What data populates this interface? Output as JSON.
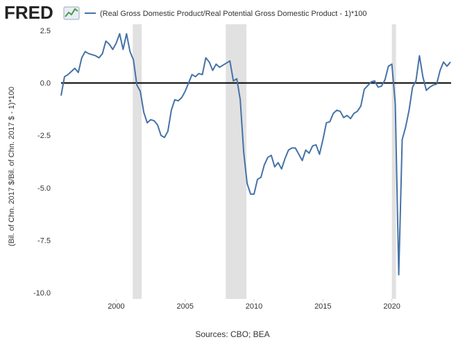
{
  "chart_data": {
    "type": "line",
    "logo": "FRED",
    "ylabel": "(Bil. of Chn. 2017 $/Bil. of Chn. 2017 $ - 1)*100",
    "source": "Sources: CBO; BEA",
    "xlim": [
      1996,
      2024.3
    ],
    "xticks": [
      2000,
      2005,
      2010,
      2015,
      2020
    ],
    "ylim": [
      -10.3,
      2.8
    ],
    "yticks": [
      2.5,
      {
        "value": 0,
        "label": "0.0"
      },
      -2.5,
      {
        "value": -5,
        "label": "-5.0"
      },
      -7.5,
      {
        "value": -10,
        "label": "-10.0"
      }
    ],
    "hline": 0,
    "recession_color": "#e1e1e1",
    "recessions": [
      [
        2001.2,
        2001.85
      ],
      [
        2007.95,
        2009.45
      ],
      [
        2020.0,
        2020.3
      ]
    ],
    "series": [
      {
        "name": "(Real Gross Domestic Product/Real Potential Gross Domestic Product - 1)*100",
        "color": "#4572a7",
        "x": [
          1996.0,
          1996.25,
          1996.5,
          1997.0,
          1997.25,
          1997.5,
          1997.75,
          1998.0,
          1998.5,
          1998.75,
          1999.0,
          1999.25,
          1999.5,
          1999.75,
          2000.0,
          2000.25,
          2000.5,
          2000.75,
          2001.0,
          2001.25,
          2001.5,
          2001.75,
          2002.0,
          2002.25,
          2002.5,
          2002.75,
          2003.0,
          2003.25,
          2003.5,
          2003.75,
          2004.0,
          2004.25,
          2004.5,
          2004.75,
          2005.0,
          2005.25,
          2005.5,
          2005.75,
          2006.0,
          2006.25,
          2006.5,
          2006.75,
          2007.0,
          2007.25,
          2007.5,
          2007.75,
          2008.0,
          2008.25,
          2008.5,
          2008.75,
          2009.0,
          2009.25,
          2009.5,
          2009.75,
          2010.0,
          2010.25,
          2010.5,
          2010.75,
          2011.0,
          2011.25,
          2011.5,
          2011.75,
          2012.0,
          2012.25,
          2012.5,
          2012.75,
          2013.0,
          2013.25,
          2013.5,
          2013.75,
          2014.0,
          2014.25,
          2014.5,
          2014.75,
          2015.0,
          2015.25,
          2015.5,
          2015.75,
          2016.0,
          2016.25,
          2016.5,
          2016.75,
          2017.0,
          2017.25,
          2017.5,
          2017.75,
          2018.0,
          2018.5,
          2018.75,
          2019.0,
          2019.25,
          2019.5,
          2019.75,
          2020.0,
          2020.25,
          2020.5,
          2020.75,
          2021.0,
          2021.25,
          2021.5,
          2021.75,
          2022.0,
          2022.25,
          2022.5,
          2022.75,
          2023.0,
          2023.25,
          2023.5,
          2023.75,
          2024.0,
          2024.25
        ],
        "values": [
          -0.6,
          0.3,
          0.4,
          0.7,
          0.5,
          1.2,
          1.5,
          1.4,
          1.3,
          1.2,
          1.4,
          2.0,
          1.85,
          1.6,
          1.9,
          2.35,
          1.6,
          2.35,
          1.5,
          1.1,
          -0.1,
          -0.4,
          -1.4,
          -1.9,
          -1.75,
          -1.8,
          -2.0,
          -2.5,
          -2.6,
          -2.3,
          -1.3,
          -0.8,
          -0.85,
          -0.7,
          -0.4,
          0.0,
          0.4,
          0.3,
          0.45,
          0.4,
          1.2,
          1.0,
          0.6,
          0.9,
          0.75,
          0.85,
          0.95,
          1.05,
          0.1,
          0.2,
          -0.8,
          -3.3,
          -4.8,
          -5.3,
          -5.3,
          -4.6,
          -4.5,
          -3.9,
          -3.55,
          -3.45,
          -4.0,
          -3.8,
          -4.1,
          -3.6,
          -3.2,
          -3.1,
          -3.1,
          -3.4,
          -3.7,
          -3.2,
          -3.35,
          -3.0,
          -2.95,
          -3.4,
          -2.7,
          -1.9,
          -1.85,
          -1.45,
          -1.3,
          -1.35,
          -1.65,
          -1.55,
          -1.7,
          -1.45,
          -1.35,
          -1.1,
          -0.3,
          0.05,
          0.1,
          -0.2,
          -0.15,
          0.15,
          0.8,
          0.9,
          -1.0,
          -9.15,
          -2.7,
          -2.1,
          -1.3,
          -0.2,
          0.1,
          1.3,
          0.3,
          -0.35,
          -0.2,
          -0.1,
          -0.05,
          0.6,
          1.0,
          0.8,
          1.0
        ]
      }
    ]
  }
}
